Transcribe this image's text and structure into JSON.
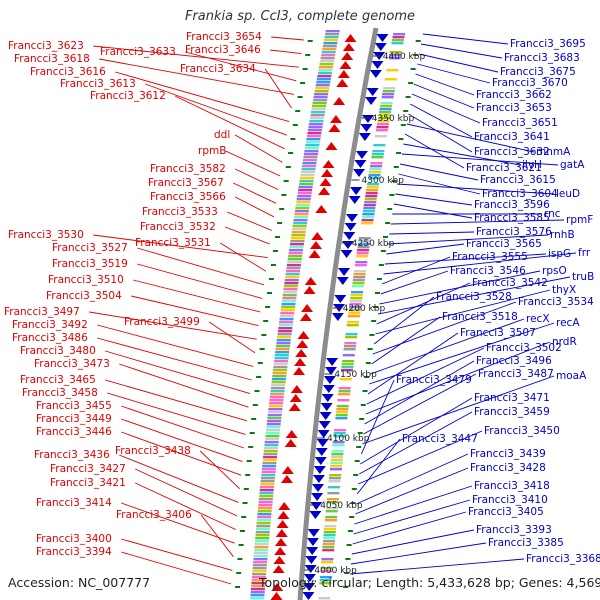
{
  "title": "Frankia sp. CcI3, complete genome",
  "footer": {
    "accession": "Accession: NC_007777",
    "summary": "Topology: circular; Length: 5,433,628 bp; Genes: 4,569"
  },
  "colors": {
    "forward": "#e00000",
    "reverse": "#0000c8",
    "backbone": "#8c8c8c",
    "tick": "#0a7a0a"
  },
  "ticks": [
    "4400 kbp",
    "4350 kbp",
    "4300 kbp",
    "4250 kbp",
    "4200 kbp",
    "4150 kbp",
    "4100 kbp",
    "4050 kbp",
    "4000 kbp"
  ],
  "left_labels": [
    "Francci3_3654",
    "Francci3_3646",
    "Francci3_3623",
    "Francci3_3633",
    "Francci3_3618",
    "Francci3_3634",
    "Francci3_3616",
    "Francci3_3613",
    "Francci3_3612",
    "ddl",
    "rpmB",
    "Francci3_3582",
    "Francci3_3567",
    "Francci3_3566",
    "Francci3_3533",
    "Francci3_3532",
    "Francci3_3530",
    "Francci3_3531",
    "Francci3_3527",
    "Francci3_3519",
    "Francci3_3510",
    "Francci3_3504",
    "Francci3_3497",
    "Francci3_3499",
    "Francci3_3492",
    "Francci3_3486",
    "Francci3_3480",
    "Francci3_3473",
    "Francci3_3465",
    "Francci3_3458",
    "Francci3_3455",
    "Francci3_3449",
    "Francci3_3446",
    "Francci3_3438",
    "Francci3_3436",
    "Francci3_3427",
    "Francci3_3421",
    "Francci3_3414",
    "Francci3_3406",
    "Francci3_3400",
    "Francci3_3394"
  ],
  "right_labels": [
    "Francci3_3695",
    "Francci3_3683",
    "Francci3_3675",
    "Francci3_3670",
    "Francci3_3662",
    "Francci3_3653",
    "Francci3_3651",
    "Francci3_3641",
    "Francci3_3632",
    "mnmA",
    "Francci3_3621",
    "ilvH",
    "gatA",
    "Francci3_3615",
    "Francci3_3604",
    "leuD",
    "Francci3_3596",
    "Francci3_3585",
    "rnc",
    "rpmF",
    "Francci3_3576",
    "rnhB",
    "Francci3_3565",
    "ispG",
    "frr",
    "Francci3_3555",
    "Francci3_3546",
    "rpsO",
    "truB",
    "Francci3_3542",
    "thyX",
    "Francci3_3528",
    "Francci3_3534",
    "Francci3_3518",
    "recX",
    "recA",
    "Francci3_3507",
    "Francci3_3502",
    "nrdR",
    "Francci3_3496",
    "Francci3_3487",
    "moaA",
    "Francci3_3479",
    "Francci3_3471",
    "Francci3_3459",
    "Francci3_3450",
    "Francci3_3447",
    "Francci3_3439",
    "Francci3_3428",
    "Francci3_3418",
    "Francci3_3410",
    "Francci3_3405",
    "Francci3_3393",
    "Francci3_3385",
    "Francci3_3368"
  ]
}
